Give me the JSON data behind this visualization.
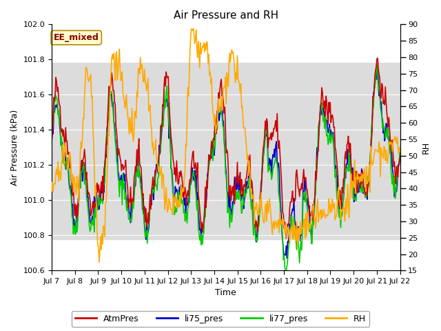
{
  "title": "Air Pressure and RH",
  "xlabel": "Time",
  "ylabel_left": "Air Pressure (kPa)",
  "ylabel_right": "RH",
  "ylim_left": [
    100.6,
    102.0
  ],
  "ylim_right": [
    15,
    90
  ],
  "x_start": 7,
  "x_end": 22,
  "x_ticks": [
    7,
    8,
    9,
    10,
    11,
    12,
    13,
    14,
    15,
    16,
    17,
    18,
    19,
    20,
    21,
    22
  ],
  "x_tick_labels": [
    "Jul 7",
    "Jul 8",
    "Jul 9",
    "Jul 10",
    "Jul 11",
    "Jul 12",
    "Jul 13",
    "Jul 14",
    "Jul 15",
    "Jul 16",
    "Jul 17",
    "Jul 18",
    "Jul 19",
    "Jul 20",
    "Jul 21",
    "Jul 22"
  ],
  "yticks_left": [
    100.6,
    100.8,
    101.0,
    101.2,
    101.4,
    101.6,
    101.8,
    102.0
  ],
  "yticks_right": [
    15,
    20,
    25,
    30,
    35,
    40,
    45,
    50,
    55,
    60,
    65,
    70,
    75,
    80,
    85,
    90
  ],
  "color_atm": "#cc0000",
  "color_li75": "#0000cc",
  "color_li77": "#00cc00",
  "color_rh": "#ffaa00",
  "annotation_text": "EE_mixed",
  "annotation_color": "#8b0000",
  "annotation_bg": "#ffffcc",
  "annotation_edge": "#b8860b",
  "bg_band_ymin": 100.78,
  "bg_band_ymax": 101.78,
  "bg_band_color": "#dcdcdc",
  "figsize": [
    6.4,
    4.8
  ],
  "dpi": 100
}
